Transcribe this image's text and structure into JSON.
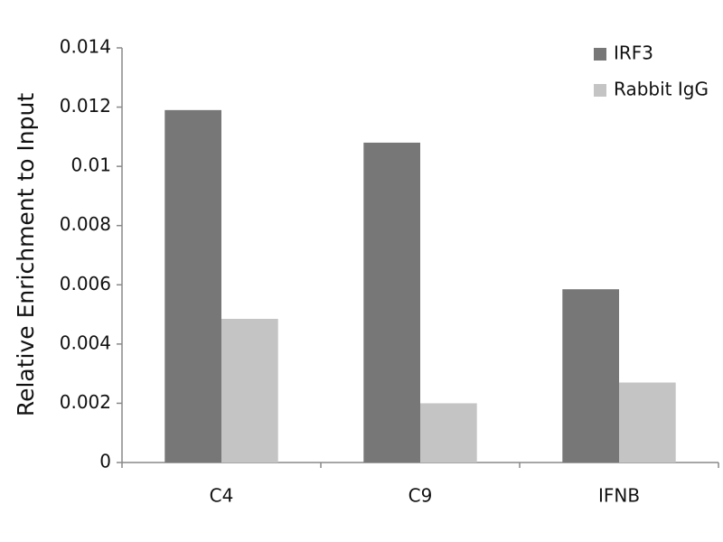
{
  "chart_data": {
    "type": "bar",
    "y_label": "Relative Enrichment to Input",
    "categories": [
      "C4",
      "C9",
      "IFNB"
    ],
    "series": [
      {
        "name": "IRF3",
        "color": "#777777",
        "values": [
          0.0119,
          0.0108,
          0.00585
        ]
      },
      {
        "name": "Rabbit IgG",
        "color": "#c4c4c4",
        "values": [
          0.00485,
          0.002,
          0.0027
        ]
      }
    ],
    "ylim": [
      0,
      0.014
    ],
    "yticks": [
      0,
      0.002,
      0.004,
      0.006,
      0.008,
      0.01,
      0.012,
      0.014
    ],
    "grid": false,
    "legend": "top-right"
  }
}
